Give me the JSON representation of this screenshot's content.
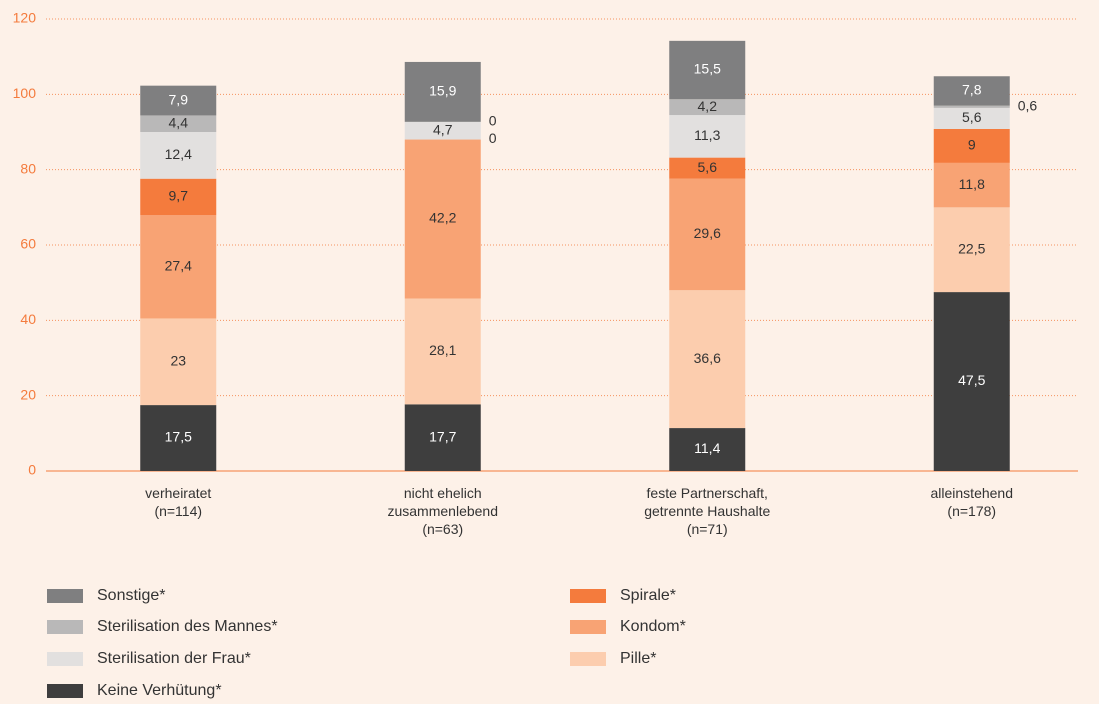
{
  "chart_data": {
    "type": "stacked_bar",
    "categories": [
      "verheiratet\n(n=114)",
      "nicht ehelich\nzusammenlebend\n(n=63)",
      "feste Partnerschaft,\ngetrennte Haushalte\n(n=71)",
      "alleinstehend\n(n=178)"
    ],
    "series": [
      {
        "name": "Keine Verhütung*",
        "color": "#3e3e3e",
        "values": [
          17.5,
          17.7,
          11.4,
          47.5
        ],
        "value_labels": [
          "17,5",
          "17,7",
          "11,4",
          "47,5"
        ]
      },
      {
        "name": "Pille*",
        "color": "#fccdae",
        "values": [
          23,
          28.1,
          36.6,
          22.5
        ],
        "value_labels": [
          "23",
          "28,1",
          "36,6",
          "22,5"
        ]
      },
      {
        "name": "Kondom*",
        "color": "#f8a374",
        "values": [
          27.4,
          42.2,
          29.6,
          11.8
        ],
        "value_labels": [
          "27,4",
          "42,2",
          "29,6",
          "11,8"
        ]
      },
      {
        "name": "Spirale*",
        "color": "#f47b3d",
        "values": [
          9.7,
          0,
          5.6,
          9
        ],
        "value_labels": [
          "9,7",
          "0",
          "5,6",
          "9"
        ]
      },
      {
        "name": "Sterilisation der Frau*",
        "color": "#e2e0df",
        "values": [
          12.4,
          4.7,
          11.3,
          5.6
        ],
        "value_labels": [
          "12,4",
          "4,7",
          "11,3",
          "5,6"
        ]
      },
      {
        "name": "Sterilisation des Mannes*",
        "color": "#b9b8b8",
        "values": [
          4.4,
          0,
          4.2,
          0.6
        ],
        "value_labels": [
          "4,4",
          "0",
          "4,2",
          "0,6"
        ]
      },
      {
        "name": "Sonstige*",
        "color": "#7f7f80",
        "values": [
          7.9,
          15.9,
          15.5,
          7.8
        ],
        "value_labels": [
          "7,9",
          "15,9",
          "15,5",
          "7,8"
        ]
      }
    ],
    "ylim": [
      0,
      120
    ],
    "yticks": [
      0,
      20,
      40,
      60,
      80,
      100,
      120
    ],
    "grid": true
  }
}
